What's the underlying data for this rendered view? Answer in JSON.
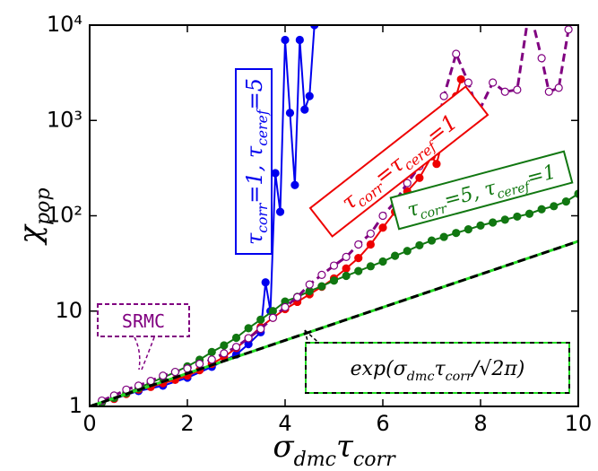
{
  "chart_data": {
    "type": "line",
    "ylabel": [
      {
        "t": "χ"
      },
      {
        "t": "pop",
        "sub": true
      }
    ],
    "xlabel": [
      {
        "t": "σ"
      },
      {
        "t": "dmc",
        "sub": true
      },
      {
        "t": "τ"
      },
      {
        "t": "corr",
        "sub": true
      }
    ],
    "xlim": [
      0,
      10
    ],
    "xticks": [
      0,
      2,
      4,
      6,
      8,
      10
    ],
    "ylim": [
      1,
      10000
    ],
    "log_y": true,
    "yticks": [
      1,
      10,
      {
        "value": 100,
        "label": "10²"
      },
      {
        "value": 1000,
        "label": "10³"
      },
      {
        "value": 10000,
        "label": "10⁴"
      }
    ],
    "series": [
      {
        "name": [
          {
            "t": "τ"
          },
          {
            "t": "corr",
            "sub": true
          },
          {
            "t": "=1, τ"
          },
          {
            "t": "ceref",
            "sub": true
          },
          {
            "t": "=5"
          }
        ],
        "color": "#0000ee",
        "marker": "filled",
        "dashed": false,
        "x": [
          0.25,
          0.5,
          1,
          1.5,
          2,
          2.5,
          3,
          3.25,
          3.5,
          3.6,
          3.7,
          3.8,
          3.9,
          4,
          4.1,
          4.2,
          4.3,
          4.4,
          4.5,
          4.6
        ],
        "values": [
          1.1,
          1.2,
          1.45,
          1.65,
          2.0,
          2.6,
          3.5,
          4.5,
          6,
          20,
          10,
          280,
          110,
          7000,
          1200,
          210,
          7000,
          1300,
          1800,
          10000
        ]
      },
      {
        "name": [
          {
            "t": "τ"
          },
          {
            "t": "corr",
            "sub": true
          },
          {
            "t": "=τ"
          },
          {
            "t": "ceref",
            "sub": true
          },
          {
            "t": "=1"
          }
        ],
        "color": "#ee0000",
        "marker": "filled",
        "dashed": false,
        "x": [
          0.25,
          0.5,
          0.75,
          1,
          1.25,
          1.5,
          1.75,
          2,
          2.25,
          2.5,
          2.75,
          3,
          3.25,
          3.5,
          3.75,
          4,
          4.25,
          4.5,
          4.75,
          5,
          5.25,
          5.5,
          5.75,
          6,
          6.25,
          6.5,
          6.75,
          7,
          7.1,
          7.25,
          7.5,
          7.6
        ],
        "values": [
          1.1,
          1.2,
          1.35,
          1.5,
          1.6,
          1.75,
          1.9,
          2.1,
          2.4,
          2.8,
          3.3,
          4.1,
          5.2,
          6.8,
          8.5,
          10.5,
          12.5,
          15,
          18,
          22,
          28,
          36,
          50,
          75,
          110,
          180,
          250,
          420,
          350,
          700,
          1800,
          2700
        ]
      },
      {
        "name": [
          {
            "t": "τ"
          },
          {
            "t": "corr",
            "sub": true
          },
          {
            "t": "=5, τ"
          },
          {
            "t": "ceref",
            "sub": true
          },
          {
            "t": "=1"
          }
        ],
        "color": "#117711",
        "marker": "filled",
        "dashed": false,
        "x": [
          0.25,
          0.5,
          0.75,
          1,
          1.25,
          1.5,
          1.75,
          2,
          2.25,
          2.5,
          2.75,
          3,
          3.25,
          3.5,
          3.75,
          4,
          4.25,
          4.5,
          4.75,
          5,
          5.25,
          5.5,
          5.75,
          6,
          6.25,
          6.5,
          6.75,
          7,
          7.25,
          7.5,
          7.75,
          8,
          8.25,
          8.5,
          8.75,
          9,
          9.25,
          9.5,
          9.75,
          10
        ],
        "values": [
          1.1,
          1.23,
          1.38,
          1.55,
          1.78,
          2.0,
          2.29,
          2.63,
          3.09,
          3.72,
          4.37,
          5.25,
          6.61,
          8.13,
          10,
          12.6,
          14.1,
          16.2,
          18.2,
          20.9,
          23.4,
          26.3,
          29.5,
          33.1,
          38,
          42.7,
          49,
          55,
          60,
          66,
          72,
          79,
          85,
          91,
          98,
          105,
          117,
          126,
          141,
          170
        ]
      },
      {
        "name": [
          {
            "t": "SRMC"
          }
        ],
        "color": "#800080",
        "marker": "open",
        "dashed": true,
        "x": [
          0.25,
          0.5,
          0.75,
          1,
          1.25,
          1.5,
          1.75,
          2,
          2.25,
          2.5,
          2.75,
          3,
          3.25,
          3.5,
          3.75,
          4,
          4.25,
          4.5,
          4.75,
          5,
          5.25,
          5.5,
          5.75,
          6,
          6.25,
          6.5,
          6.75,
          7,
          7.25,
          7.5,
          7.75,
          7.95,
          8.25,
          8.5,
          8.75,
          9,
          9.25,
          9.4,
          9.6,
          9.8
        ],
        "values": [
          1.15,
          1.3,
          1.5,
          1.65,
          1.85,
          2.1,
          2.3,
          2.5,
          2.8,
          3.1,
          3.6,
          4.2,
          5.2,
          6.5,
          8.5,
          11,
          14,
          19,
          24,
          30,
          37,
          50,
          65,
          100,
          140,
          220,
          330,
          480,
          1800,
          5000,
          2500,
          1200,
          2500,
          2000,
          2100,
          15000,
          4500,
          2000,
          2200,
          9000
        ]
      },
      {
        "name": [
          {
            "t": "exp("
          },
          {
            "t": "σ"
          },
          {
            "t": "dmc",
            "sub": true
          },
          {
            "t": "τ"
          },
          {
            "t": "corr",
            "sub": true
          },
          {
            "t": "/√2π)"
          }
        ],
        "color": "#000000",
        "marker": "none",
        "dashed": true,
        "x": [
          0,
          10
        ],
        "values": [
          1,
          54
        ]
      }
    ]
  }
}
